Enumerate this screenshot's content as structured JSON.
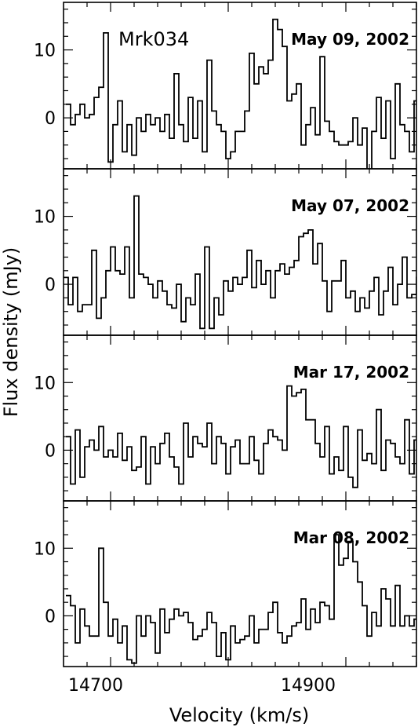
{
  "figure": {
    "object_label": "Mrk034",
    "xlabel": "Velocity (km/s)",
    "ylabel": "Flux density (mJy)",
    "x_ticks": [
      "14700",
      "14900"
    ],
    "y_ticks": [
      "0",
      "10"
    ]
  },
  "chart_data": {
    "type": "line",
    "drawstyle": "steps",
    "xlabel": "Velocity (km/s)",
    "ylabel": "Flux density (mJy)",
    "xlim": [
      14660,
      14960
    ],
    "ylim": [
      -7.5,
      17
    ],
    "x_ticks": [
      14700,
      14900
    ],
    "y_ticks": [
      0,
      10
    ],
    "bin_width": 4,
    "panels": [
      {
        "name": "May 09, 2002",
        "x_start": 14662,
        "values": [
          2,
          -1,
          0.5,
          2,
          0,
          0.5,
          3,
          4.5,
          12.5,
          -6.5,
          -1,
          2.5,
          -5,
          -1,
          -5.5,
          0,
          -2,
          0.5,
          -1,
          0,
          -2,
          0.5,
          -3,
          6.5,
          -1,
          -3.5,
          3,
          -3,
          2.5,
          -5,
          8.5,
          1,
          -1,
          -2,
          -6,
          -5,
          -2,
          -2,
          1,
          9.5,
          5,
          7.5,
          6.5,
          8.5,
          14.5,
          13,
          10.5,
          2.5,
          3.5,
          5,
          -4,
          -1,
          1.5,
          -2.5,
          9,
          -0.5,
          -2,
          -3.5,
          -4,
          -4,
          -3.5,
          0,
          -4,
          -1.5,
          -8,
          -2,
          3,
          -3,
          2.5,
          -6,
          5,
          -1,
          -2,
          -5,
          2.5,
          1,
          2,
          -4.5,
          2,
          0.5,
          4,
          1,
          -6,
          -2,
          -5,
          0
        ],
        "series_color": "#000000"
      },
      {
        "name": "May 07, 2002",
        "x_start": 14660,
        "values": [
          1,
          -3,
          1,
          -4,
          -3,
          -3,
          5,
          -5,
          -2,
          2,
          5.5,
          2,
          1.5,
          5.5,
          -2,
          13,
          1.5,
          1,
          0,
          -2,
          0.5,
          -1,
          -3,
          -3.5,
          0,
          -5.5,
          -2,
          -3,
          1.5,
          -6.5,
          5.5,
          -6.5,
          -2,
          -4.5,
          0.5,
          -1,
          1,
          0,
          1,
          5,
          -0.5,
          3.5,
          0,
          2,
          -2,
          2,
          3,
          1.5,
          2.5,
          3.5,
          7,
          7.5,
          8,
          3,
          6,
          0.5,
          -4,
          0.5,
          0.5,
          3.5,
          -2,
          -1,
          -4,
          -2,
          -3.5,
          -1,
          1,
          -4.5,
          -1,
          2.5,
          -3,
          0,
          4,
          -2,
          -1.5,
          1,
          5.5,
          2.5,
          -1.5,
          1,
          -2,
          -4,
          -1.5,
          -3,
          -6,
          -6.5,
          4.5,
          -6,
          -1.5,
          5,
          6
        ],
        "series_color": "#000000"
      },
      {
        "name": "Mar 17, 2002",
        "x_start": 14662,
        "values": [
          2,
          -5,
          3,
          -4,
          0.5,
          1.5,
          0,
          3.5,
          -1,
          0,
          -1,
          2.5,
          -1.5,
          0.5,
          -3,
          -2.5,
          2,
          -5,
          0.5,
          -2,
          1,
          2.5,
          -1,
          -2.5,
          -5,
          4,
          -1,
          2,
          1,
          0.5,
          4,
          -2,
          2,
          1,
          -3.5,
          0.5,
          1.5,
          -2,
          -2,
          2,
          -1.5,
          -3.5,
          1,
          3,
          2,
          1.5,
          0,
          9.5,
          8,
          8.5,
          9,
          4.5,
          4.5,
          1,
          -1,
          3.5,
          -3.5,
          -1,
          -3,
          3.5,
          -4,
          -5.5,
          3,
          -1.5,
          -0.5,
          -2,
          6,
          -3,
          1.5,
          1,
          -1,
          -2,
          4.5,
          -3.5,
          1.5,
          -6,
          -1,
          0.5,
          -2,
          0.5,
          -2,
          1,
          -3,
          -4,
          6,
          -4,
          -3,
          0.5,
          -4
        ],
        "series_color": "#000000"
      },
      {
        "name": "Mar 08, 2002",
        "x_start": 14662,
        "values": [
          3,
          1.5,
          -4,
          1,
          -1.5,
          -3,
          -3,
          10,
          2,
          -3,
          -0.5,
          -4,
          -1.5,
          -6.5,
          -7,
          0,
          -3,
          0,
          -1,
          -5.5,
          1,
          -2.5,
          -0.5,
          1,
          0,
          0.5,
          -1,
          -3.5,
          -3,
          -2,
          0.5,
          -1,
          -6,
          -2.5,
          -6.5,
          -1.5,
          -4,
          -3.5,
          -3,
          0,
          -4,
          -2,
          -2,
          0.5,
          2,
          -2.5,
          -4,
          -3,
          -1.5,
          -1,
          2.5,
          -2,
          1,
          -1,
          2,
          1.5,
          -0.5,
          12,
          7.5,
          8.5,
          11,
          8,
          5,
          1.5,
          -3,
          0.5,
          -1.5,
          4,
          2.5,
          -1.5,
          4.5,
          -1.5,
          0,
          -1.5,
          -0.5,
          -2.5,
          -0.5,
          2,
          -3.5,
          -1.5,
          6.5,
          -4,
          5,
          -1,
          -3,
          3,
          -2,
          -1,
          -2,
          1,
          0.5,
          -1.5,
          -2.5,
          5.5,
          -3
        ],
        "series_color": "#000000"
      }
    ],
    "grid": false,
    "legend": "none"
  }
}
